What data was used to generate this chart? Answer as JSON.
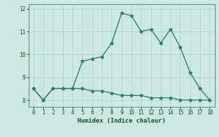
{
  "xlabel": "Humidex (Indice chaleur)",
  "line1_x": [
    0,
    1,
    2,
    3,
    4,
    5,
    6,
    7,
    8,
    9,
    10,
    11,
    12,
    13,
    14,
    15,
    16,
    17,
    18
  ],
  "line1_y": [
    8.5,
    8.0,
    8.5,
    8.5,
    8.5,
    9.7,
    9.8,
    9.9,
    10.5,
    11.8,
    11.7,
    11.0,
    11.1,
    10.5,
    11.1,
    10.3,
    9.2,
    8.5,
    8.0
  ],
  "line2_x": [
    0,
    1,
    2,
    3,
    4,
    5,
    6,
    7,
    8,
    9,
    10,
    11,
    12,
    13,
    14,
    15,
    16,
    17,
    18
  ],
  "line2_y": [
    8.5,
    8.0,
    8.5,
    8.5,
    8.5,
    8.5,
    8.4,
    8.4,
    8.3,
    8.2,
    8.2,
    8.2,
    8.1,
    8.1,
    8.1,
    8.0,
    8.0,
    8.0,
    8.0
  ],
  "line_color": "#2e7d6e",
  "bg_color": "#cce8e0",
  "grid_color": "#b0d8d0",
  "ylim": [
    7.7,
    12.2
  ],
  "xlim": [
    -0.5,
    18.5
  ],
  "yticks": [
    8,
    9,
    10,
    11,
    12
  ],
  "xticks": [
    0,
    1,
    2,
    3,
    4,
    5,
    6,
    7,
    8,
    9,
    10,
    11,
    12,
    13,
    14,
    15,
    16,
    17,
    18
  ],
  "marker": "*",
  "markersize": 3.5,
  "linewidth": 1.0
}
